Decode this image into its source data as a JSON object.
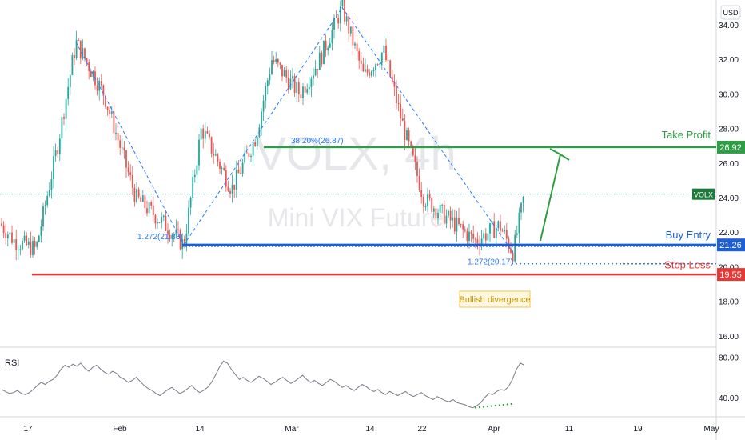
{
  "watermark": {
    "symbol": "VOLX, 4h",
    "name": "Mini VIX Future"
  },
  "currency": "USD",
  "colors": {
    "up": "#26a69a",
    "down": "#ef5350",
    "green": "#2e9e45",
    "blue": "#1e5fd6",
    "red": "#e53935",
    "rsi": "#787b86",
    "fib": "#2979ff"
  },
  "chart_data": [
    {
      "type": "candlestick",
      "title": "",
      "symbol_label": "VOLX",
      "price_tag": "VOLX",
      "ylim": [
        15.2,
        35.0
      ],
      "y_ticks": [
        "16.00",
        "18.00",
        "20.00",
        "22.00",
        "24.00",
        "26.00",
        "28.00",
        "30.00",
        "32.00",
        "34.00"
      ],
      "x_ticks": [
        "17",
        "Feb",
        "14",
        "Mar",
        "14",
        "22",
        "Apr",
        "11",
        "19",
        "May"
      ],
      "current_price": 24.2,
      "levels": [
        {
          "name": "Take Profit",
          "value": 26.92,
          "tag": "26.92",
          "color": "#2e9e45"
        },
        {
          "name": "Buy Entry",
          "value": 21.26,
          "tag": "21.26",
          "color": "#1e5fd6"
        },
        {
          "name": "Stop Loss",
          "value": 19.55,
          "tag": "19.55",
          "color": "#e53935"
        }
      ],
      "annotations": [
        "38.20%(26.87)",
        "1.272(21.33)",
        "1.272(20.17)",
        "Bullish divergence"
      ],
      "swing_points": [
        {
          "label": "high",
          "value": 33.0
        },
        {
          "label": "low",
          "value": 21.26
        },
        {
          "label": "high",
          "value": 35.0
        },
        {
          "label": "low",
          "value": 20.8
        }
      ]
    },
    {
      "type": "line",
      "title": "RSI",
      "ylim": [
        25,
        85
      ],
      "y_ticks": [
        "40.00",
        "80.00"
      ],
      "values": [
        48,
        46,
        44,
        45,
        47,
        44,
        43,
        45,
        48,
        52,
        55,
        53,
        56,
        58,
        62,
        68,
        72,
        70,
        73,
        71,
        74,
        69,
        66,
        70,
        72,
        68,
        65,
        63,
        66,
        64,
        60,
        58,
        55,
        57,
        60,
        56,
        52,
        49,
        47,
        44,
        42,
        45,
        48,
        50,
        47,
        44,
        46,
        49,
        52,
        48,
        45,
        47,
        50,
        55,
        62,
        70,
        76,
        74,
        68,
        63,
        58,
        60,
        57,
        55,
        58,
        61,
        59,
        56,
        53,
        55,
        58,
        60,
        57,
        54,
        56,
        59,
        62,
        58,
        55,
        57,
        54,
        52,
        55,
        58,
        56,
        53,
        50,
        52,
        49,
        47,
        50,
        53,
        51,
        48,
        46,
        48,
        45,
        43,
        46,
        44,
        42,
        44,
        46,
        43,
        41,
        43,
        45,
        42,
        40,
        38,
        41,
        39,
        37,
        36,
        38,
        35,
        34,
        33,
        31,
        30,
        32,
        35,
        40,
        44,
        43,
        46,
        48,
        47,
        51,
        58,
        68,
        74,
        72
      ]
    }
  ]
}
